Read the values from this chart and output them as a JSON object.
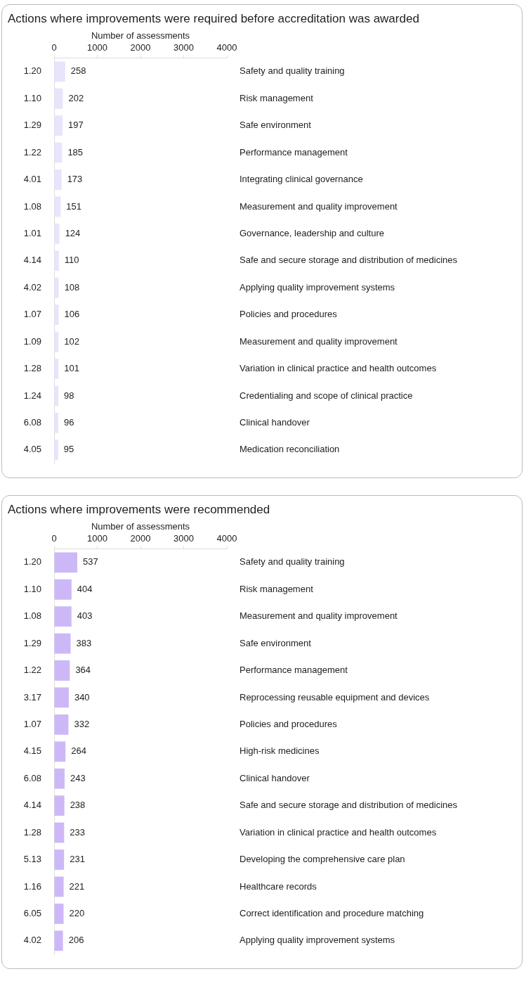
{
  "chart_data": [
    {
      "type": "bar",
      "orientation": "horizontal",
      "title": "Actions where improvements were required before accreditation was awarded",
      "xlabel": "Number of assessments",
      "xlim": [
        0,
        4000
      ],
      "xticks": [
        0,
        1000,
        2000,
        3000,
        4000
      ],
      "grid": false,
      "legend": false,
      "data_labels": true,
      "color": "#e8e4fb",
      "categories": [
        "1.20",
        "1.10",
        "1.29",
        "1.22",
        "4.01",
        "1.08",
        "1.01",
        "4.14",
        "4.02",
        "1.07",
        "1.09",
        "1.28",
        "1.24",
        "6.08",
        "4.05"
      ],
      "y2_categories": [
        "Safety and quality training",
        "Risk management",
        "Safe environment",
        "Performance management",
        "Integrating clinical governance",
        "Measurement and quality improvement",
        "Governance, leadership and culture",
        "Safe and secure storage and distribution of medicines",
        "Applying quality improvement systems",
        "Policies and procedures",
        "Measurement and quality improvement",
        "Variation in clinical practice and health outcomes",
        "Credentialing and scope of clinical practice",
        "Clinical handover",
        "Medication reconciliation"
      ],
      "values": [
        258,
        202,
        197,
        185,
        173,
        151,
        124,
        110,
        108,
        106,
        102,
        101,
        98,
        96,
        95
      ]
    },
    {
      "type": "bar",
      "orientation": "horizontal",
      "title": "Actions where improvements were recommended",
      "xlabel": "Number of assessments",
      "xlim": [
        0,
        4000
      ],
      "xticks": [
        0,
        1000,
        2000,
        3000,
        4000
      ],
      "grid": false,
      "legend": false,
      "data_labels": true,
      "color": "#cdb8f7",
      "categories": [
        "1.20",
        "1.10",
        "1.08",
        "1.29",
        "1.22",
        "3.17",
        "1.07",
        "4.15",
        "6.08",
        "4.14",
        "1.28",
        "5.13",
        "1.16",
        "6.05",
        "4.02"
      ],
      "y2_categories": [
        "Safety and quality training",
        "Risk management",
        "Measurement and quality improvement",
        "Safe environment",
        "Performance management",
        "Reprocessing reusable equipment and devices",
        "Policies and procedures",
        "High-risk medicines",
        "Clinical handover",
        "Safe and secure storage and distribution of medicines",
        "Variation in clinical practice and health outcomes",
        "Developing the comprehensive care plan",
        "Healthcare records",
        "Correct identification and procedure matching",
        "Applying quality improvement systems"
      ],
      "values": [
        537,
        404,
        403,
        383,
        364,
        340,
        332,
        264,
        243,
        238,
        233,
        231,
        221,
        220,
        206
      ]
    }
  ]
}
